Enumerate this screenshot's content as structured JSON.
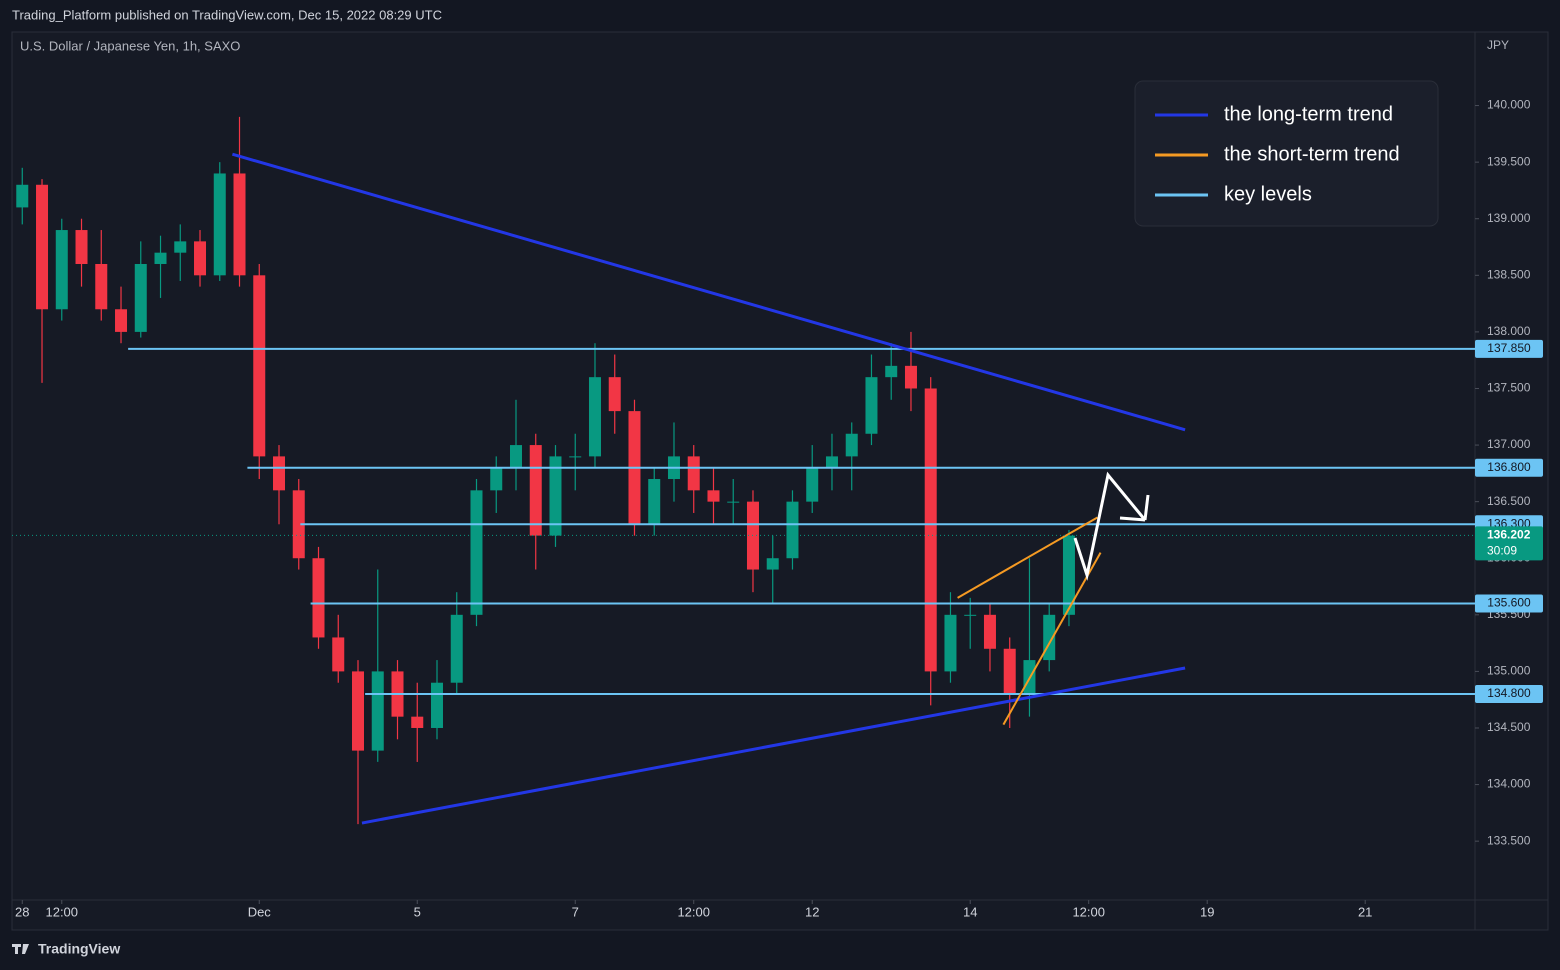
{
  "chart_data": {
    "type": "candlestick",
    "header": "Trading_Platform published on TradingView.com, Dec 15, 2022 08:29 UTC",
    "title": "U.S. Dollar / Japanese Yen, 1h, SAXO",
    "y_axis_label": "JPY",
    "footer": "TradingView",
    "up_color": "#089981",
    "down_color": "#f23645",
    "x": [
      0,
      0.25,
      0.5,
      0.75,
      1,
      1.25,
      1.5,
      1.75,
      2,
      2.25,
      2.5,
      2.75,
      3,
      3.25,
      3.5,
      3.75,
      4,
      4.25,
      4.5,
      4.75,
      5,
      5.25,
      5.5,
      5.75,
      6,
      6.25,
      6.5,
      6.75,
      7,
      7.25,
      7.5,
      7.75,
      8,
      8.25,
      8.5,
      8.75,
      9,
      9.25,
      9.5,
      9.75,
      10,
      10.25,
      10.5,
      10.75,
      11,
      11.25,
      11.5,
      11.75,
      12,
      12.25,
      12.5,
      12.75,
      13,
      13.25
    ],
    "open": [
      139.1,
      139.3,
      138.2,
      138.9,
      138.6,
      138.2,
      138.0,
      138.6,
      138.7,
      138.8,
      138.5,
      139.4,
      138.5,
      136.9,
      136.6,
      136.0,
      135.3,
      135.0,
      134.3,
      135.0,
      134.6,
      134.5,
      134.9,
      135.5,
      136.6,
      136.8,
      137.0,
      136.2,
      136.9,
      136.9,
      137.6,
      137.3,
      136.3,
      136.7,
      136.9,
      136.6,
      136.5,
      136.5,
      135.9,
      136.0,
      136.5,
      136.8,
      136.9,
      137.1,
      137.6,
      137.7,
      137.5,
      135.0,
      135.5,
      135.5,
      135.2,
      134.8,
      135.1,
      135.5
    ],
    "high": [
      139.45,
      139.35,
      139.0,
      139.0,
      138.9,
      138.4,
      138.8,
      138.85,
      138.95,
      138.9,
      139.5,
      139.9,
      138.6,
      137.0,
      136.7,
      136.1,
      135.5,
      135.1,
      135.9,
      135.1,
      134.9,
      135.1,
      135.7,
      136.7,
      136.9,
      137.4,
      137.1,
      137.0,
      137.1,
      137.9,
      137.8,
      137.4,
      136.8,
      137.2,
      137.0,
      136.8,
      136.7,
      136.6,
      136.2,
      136.6,
      137.0,
      137.1,
      137.2,
      137.8,
      137.9,
      138.0,
      137.6,
      135.7,
      135.65,
      135.6,
      135.3,
      136.0,
      135.6,
      136.25
    ],
    "low": [
      138.95,
      137.55,
      138.1,
      138.4,
      138.1,
      137.9,
      137.95,
      138.3,
      138.45,
      138.4,
      138.45,
      138.4,
      136.7,
      136.3,
      135.9,
      135.2,
      134.9,
      133.65,
      134.2,
      134.4,
      134.2,
      134.4,
      134.8,
      135.4,
      136.4,
      136.6,
      135.9,
      136.1,
      136.6,
      136.8,
      137.1,
      136.2,
      136.2,
      136.5,
      136.4,
      136.3,
      136.3,
      135.7,
      135.6,
      135.9,
      136.4,
      136.6,
      136.6,
      137.0,
      137.4,
      137.3,
      134.7,
      134.9,
      135.2,
      135.0,
      134.5,
      134.6,
      135.0,
      135.4
    ],
    "close": [
      139.3,
      138.2,
      138.9,
      138.6,
      138.2,
      138.0,
      138.6,
      138.7,
      138.8,
      138.5,
      139.4,
      138.5,
      136.9,
      136.6,
      136.0,
      135.3,
      135.0,
      134.3,
      135.0,
      134.6,
      134.5,
      134.9,
      135.5,
      136.6,
      136.8,
      137.0,
      136.2,
      136.9,
      136.9,
      137.6,
      137.3,
      136.3,
      136.7,
      136.9,
      136.6,
      136.5,
      136.5,
      135.9,
      136.0,
      136.5,
      136.8,
      136.9,
      137.1,
      137.6,
      137.7,
      137.5,
      135.0,
      135.5,
      135.5,
      135.2,
      134.8,
      135.1,
      135.5,
      136.2
    ],
    "xlim": [
      -0.13,
      18.39
    ],
    "ylim": [
      132.98,
      140.65
    ],
    "xticks": [
      {
        "value": 0,
        "label": "28"
      },
      {
        "value": 0.5,
        "label": "12:00"
      },
      {
        "value": 3,
        "label": "Dec"
      },
      {
        "value": 5,
        "label": "5"
      },
      {
        "value": 7,
        "label": "7"
      },
      {
        "value": 8.5,
        "label": "12:00"
      },
      {
        "value": 10,
        "label": "12"
      },
      {
        "value": 12,
        "label": "14"
      },
      {
        "value": 13.5,
        "label": "12:00"
      },
      {
        "value": 15,
        "label": "19"
      },
      {
        "value": 17,
        "label": "21"
      }
    ],
    "yticks": [
      {
        "value": 133.5,
        "label": "133.500"
      },
      {
        "value": 134,
        "label": "134.000"
      },
      {
        "value": 134.5,
        "label": "134.500"
      },
      {
        "value": 135,
        "label": "135.000"
      },
      {
        "value": 135.5,
        "label": "135.500"
      },
      {
        "value": 136,
        "label": "136.000"
      },
      {
        "value": 136.5,
        "label": "136.500"
      },
      {
        "value": 137,
        "label": "137.000"
      },
      {
        "value": 137.5,
        "label": "137.500"
      },
      {
        "value": 138,
        "label": "138.000"
      },
      {
        "value": 138.5,
        "label": "138.500"
      },
      {
        "value": 139,
        "label": "139.000"
      },
      {
        "value": 139.5,
        "label": "139.500"
      },
      {
        "value": 140,
        "label": "140.000"
      }
    ],
    "key_levels": {
      "name": "key levels",
      "color": "#6cc4f4",
      "values": [
        137.85,
        136.8,
        136.3,
        135.6,
        134.8
      ],
      "value_labels": [
        "137.850",
        "136.800",
        "136.300",
        "135.600",
        "134.800"
      ],
      "x_start": [
        1.34,
        2.85,
        3.52,
        3.65,
        4.34
      ]
    },
    "trend_lines": [
      {
        "name": "the long-term trend",
        "color": "#2337e6",
        "lines": [
          {
            "x": [
              2.66,
              14.72
            ],
            "y": [
              139.57,
              137.135
            ]
          },
          {
            "x": [
              4.3,
              14.72
            ],
            "y": [
              133.66,
              135.03
            ]
          }
        ]
      },
      {
        "name": "the short-term trend",
        "color": "#f59a23",
        "lines": [
          {
            "x": [
              11.84,
              13.61
            ],
            "y": [
              135.65,
              136.36
            ]
          },
          {
            "x": [
              12.42,
              13.65
            ],
            "y": [
              134.53,
              136.05
            ]
          }
        ]
      }
    ],
    "last_price": 136.202,
    "last_price_color": "#089981",
    "countdown": "30:09"
  }
}
